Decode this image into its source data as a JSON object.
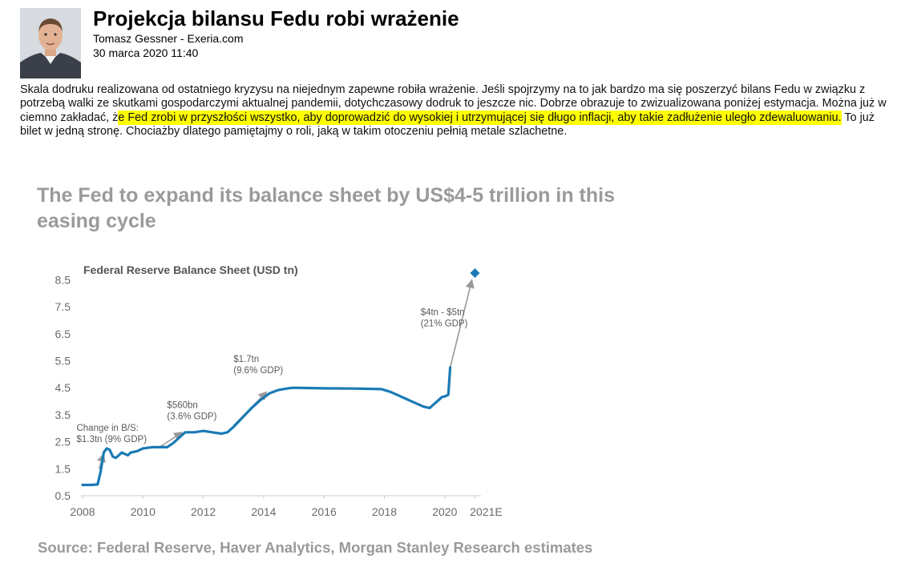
{
  "article": {
    "title": "Projekcja bilansu Fedu robi wrażenie",
    "author": "Tomasz Gessner - Exeria.com",
    "date": "30 marca 2020 11:40",
    "body_before": "Skala dodruku realizowana od ostatniego kryzysu na niejednym zapewne robiła wrażenie. Jeśli spojrzymy na to jak bardzo ma się poszerzyć bilans Fedu w związku z potrzebą walki ze skutkami gospodarczymi aktualnej pandemii, dotychczasowy dodruk to jeszcze nic. Dobrze obrazuje to zwizualizowana poniżej estymacja. Można już w ciemno zakładać, ż",
    "body_highlight": "e Fed zrobi w przyszłości wszystko, aby doprowadzić do wysokiej i utrzymującej się długo inflacji, aby takie zadłużenie uległo zdewaluowaniu.",
    "body_after": " To już bilet w jedną stronę. Chociażby dlatego pamiętajmy o roli, jaką w takim otoczeniu pełnią metale szlachetne.",
    "highlight_color": "#ffff00",
    "avatar_icon": "author-photo"
  },
  "chart_data": {
    "type": "line",
    "title": "The Fed to expand its balance sheet by US$4-5 trillion in this easing cycle",
    "subtitle": "Federal Reserve Balance Sheet (USD tn)",
    "source": "Source: Federal Reserve, Haver Analytics, Morgan Stanley Research estimates",
    "xlabel": "",
    "ylabel": "",
    "x_ticks": [
      "2008",
      "2010",
      "2012",
      "2014",
      "2016",
      "2018",
      "2020",
      "2021E"
    ],
    "y_ticks": [
      "0.5",
      "1.5",
      "2.5",
      "3.5",
      "4.5",
      "5.5",
      "6.5",
      "7.5",
      "8.5"
    ],
    "xlim": [
      2008,
      2021.2
    ],
    "ylim": [
      0.5,
      8.9
    ],
    "series_color": "#1a7ab5",
    "arrow_color": "#999999",
    "series": [
      {
        "points": [
          [
            2008.0,
            0.9
          ],
          [
            2008.3,
            0.9
          ],
          [
            2008.5,
            0.92
          ],
          [
            2008.6,
            1.4
          ],
          [
            2008.7,
            2.1
          ],
          [
            2008.8,
            2.25
          ],
          [
            2008.9,
            2.2
          ],
          [
            2009.0,
            1.95
          ],
          [
            2009.1,
            1.9
          ],
          [
            2009.2,
            2.0
          ],
          [
            2009.3,
            2.1
          ],
          [
            2009.4,
            2.05
          ],
          [
            2009.5,
            2.0
          ],
          [
            2009.6,
            2.1
          ],
          [
            2009.8,
            2.15
          ],
          [
            2010.0,
            2.25
          ],
          [
            2010.3,
            2.3
          ],
          [
            2010.6,
            2.3
          ],
          [
            2010.8,
            2.3
          ],
          [
            2011.0,
            2.45
          ],
          [
            2011.2,
            2.65
          ],
          [
            2011.4,
            2.85
          ],
          [
            2011.7,
            2.85
          ],
          [
            2012.0,
            2.9
          ],
          [
            2012.3,
            2.85
          ],
          [
            2012.6,
            2.8
          ],
          [
            2012.8,
            2.85
          ],
          [
            2013.0,
            3.05
          ],
          [
            2013.3,
            3.4
          ],
          [
            2013.6,
            3.75
          ],
          [
            2013.9,
            4.05
          ],
          [
            2014.2,
            4.3
          ],
          [
            2014.5,
            4.42
          ],
          [
            2014.8,
            4.48
          ],
          [
            2015.0,
            4.5
          ],
          [
            2016.0,
            4.48
          ],
          [
            2017.0,
            4.47
          ],
          [
            2017.9,
            4.45
          ],
          [
            2018.2,
            4.35
          ],
          [
            2018.5,
            4.2
          ],
          [
            2018.8,
            4.05
          ],
          [
            2019.0,
            3.95
          ],
          [
            2019.3,
            3.8
          ],
          [
            2019.5,
            3.75
          ],
          [
            2019.7,
            3.95
          ],
          [
            2019.9,
            4.15
          ],
          [
            2020.05,
            4.2
          ],
          [
            2020.12,
            4.25
          ],
          [
            2020.18,
            5.25
          ]
        ]
      }
    ],
    "projection": {
      "x": 2021.0,
      "y": 8.75
    },
    "annotations": [
      {
        "lines": [
          "Change in B/S:",
          "$1.3tn (9% GDP)"
        ],
        "text_x": 2007.8,
        "text_y": 2.9,
        "arrow_from": [
          2008.55,
          1.5
        ],
        "arrow_to": [
          2008.7,
          2.05
        ]
      },
      {
        "lines": [
          "$560bn",
          "(3.6% GDP)"
        ],
        "text_x": 2010.8,
        "text_y": 3.75,
        "arrow_from": [
          2010.55,
          2.3
        ],
        "arrow_to": [
          2011.3,
          2.85
        ]
      },
      {
        "lines": [
          "$1.7tn",
          "(9.6% GDP)"
        ],
        "text_x": 2013.0,
        "text_y": 5.45,
        "arrow_from": [
          2013.0,
          3.1
        ],
        "arrow_to": [
          2014.1,
          4.35
        ]
      },
      {
        "lines": [
          "$4tn - $5tn",
          "(21% GDP)"
        ],
        "text_x": 2019.2,
        "text_y": 7.2,
        "arrow_from": [
          2020.18,
          5.25
        ],
        "arrow_to": [
          2020.9,
          8.5
        ]
      }
    ]
  }
}
